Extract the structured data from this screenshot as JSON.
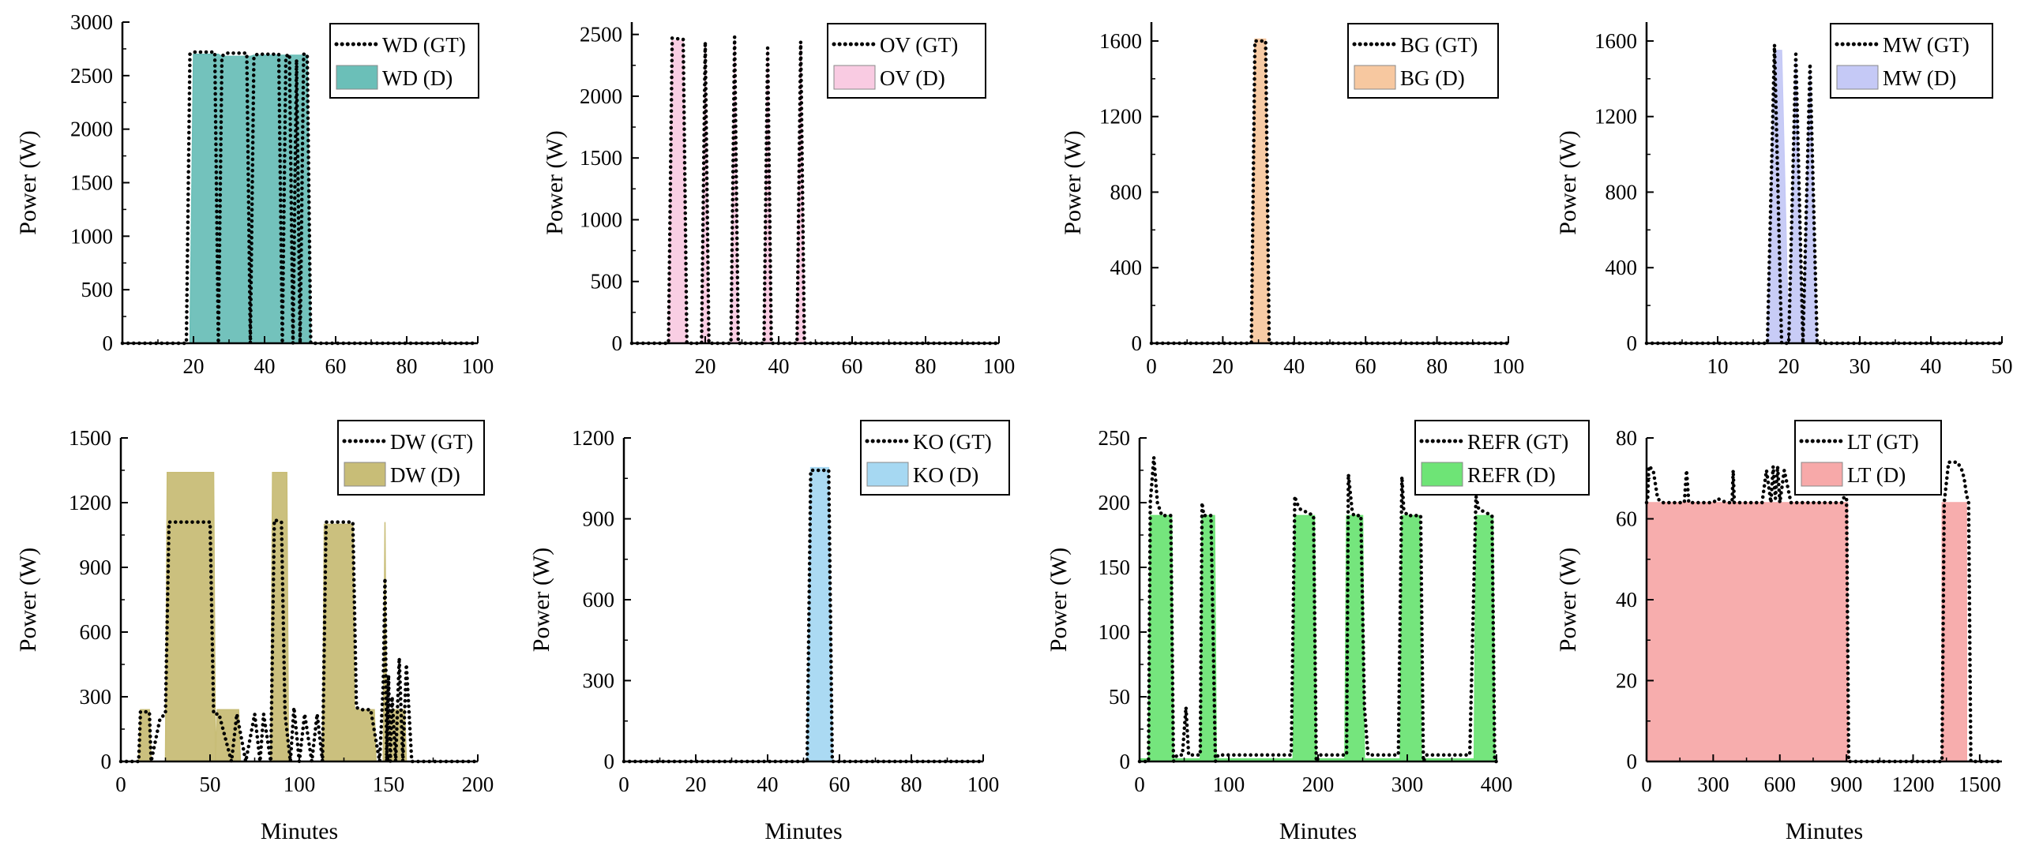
{
  "figure": {
    "background": "#ffffff"
  },
  "chart_data": [
    {
      "id": "wd",
      "type": "area",
      "ylabel": "Power (W)",
      "xlabel": "",
      "xlim": [
        0,
        100
      ],
      "ylim": [
        0,
        3000
      ],
      "xticks": [
        20,
        40,
        60,
        80,
        100
      ],
      "yticks": [
        0,
        500,
        1000,
        1500,
        2000,
        2500,
        3000
      ],
      "series": [
        {
          "name": "WD (GT)",
          "role": "gt",
          "color": "#000000",
          "x": [
            0,
            18,
            19,
            20,
            26,
            27,
            28,
            29,
            35,
            36,
            37,
            38,
            44,
            45,
            46,
            47,
            48,
            49,
            50,
            51,
            52,
            53,
            100
          ],
          "y": [
            0,
            0,
            2700,
            2720,
            2720,
            0,
            2680,
            2710,
            2710,
            0,
            2680,
            2700,
            2700,
            0,
            2680,
            2700,
            0,
            2650,
            0,
            2700,
            2700,
            0,
            0
          ]
        },
        {
          "name": "WD (D)",
          "role": "d",
          "color": "#6bbfb8",
          "x": [
            0,
            19,
            20,
            27,
            28,
            36,
            37,
            44,
            45,
            47,
            49,
            50,
            51,
            52,
            53,
            100
          ],
          "y": [
            0,
            0,
            2700,
            2700,
            2680,
            2680,
            2690,
            2690,
            2690,
            2690,
            2690,
            2690,
            2690,
            2690,
            0,
            0
          ]
        }
      ]
    },
    {
      "id": "ov",
      "type": "area",
      "ylabel": "Power (W)",
      "xlabel": "",
      "xlim": [
        0,
        100
      ],
      "ylim": [
        0,
        2600
      ],
      "xticks": [
        20,
        40,
        60,
        80,
        100
      ],
      "yticks": [
        0,
        500,
        1000,
        1500,
        2000,
        2500
      ],
      "series": [
        {
          "name": "OV (GT)",
          "role": "gt",
          "color": "#000000",
          "x": [
            0,
            10,
            11,
            14,
            15,
            19,
            20,
            21,
            27,
            28,
            29,
            36,
            37,
            38,
            45,
            46,
            47,
            100
          ],
          "y": [
            0,
            0,
            2470,
            2460,
            0,
            0,
            2440,
            0,
            0,
            2480,
            0,
            0,
            2390,
            0,
            0,
            2440,
            0,
            0
          ]
        },
        {
          "name": "OV (D)",
          "role": "d",
          "color": "#f9cbe2",
          "x": [
            0,
            10,
            11,
            14,
            15,
            19,
            20,
            21,
            27,
            28,
            29,
            36,
            37,
            38,
            45,
            46,
            47,
            100
          ],
          "y": [
            0,
            0,
            2450,
            2450,
            0,
            0,
            2420,
            0,
            0,
            2450,
            0,
            0,
            2370,
            0,
            0,
            2420,
            0,
            0
          ]
        }
      ]
    },
    {
      "id": "bg",
      "type": "area",
      "ylabel": "Power (W)",
      "xlabel": "",
      "xlim": [
        0,
        100
      ],
      "ylim": [
        0,
        1700
      ],
      "xticks": [
        0,
        20,
        40,
        60,
        80,
        100
      ],
      "yticks": [
        0,
        400,
        800,
        1200,
        1600
      ],
      "series": [
        {
          "name": "BG (GT)",
          "role": "gt",
          "color": "#000000",
          "x": [
            0,
            28,
            29,
            32,
            33,
            100
          ],
          "y": [
            0,
            0,
            1600,
            1600,
            0,
            0
          ]
        },
        {
          "name": "BG (D)",
          "role": "d",
          "color": "#f7c8a0",
          "x": [
            0,
            28,
            29,
            32,
            33,
            100
          ],
          "y": [
            0,
            0,
            1610,
            1610,
            0,
            0
          ]
        }
      ]
    },
    {
      "id": "mw",
      "type": "area",
      "ylabel": "Power (W)",
      "xlabel": "",
      "xlim": [
        0,
        50
      ],
      "ylim": [
        0,
        1700
      ],
      "xticks": [
        10,
        20,
        30,
        40,
        50
      ],
      "yticks": [
        0,
        400,
        800,
        1200,
        1600
      ],
      "series": [
        {
          "name": "MW (GT)",
          "role": "gt",
          "color": "#000000",
          "x": [
            0,
            17,
            18,
            19,
            20,
            21,
            22,
            23,
            24,
            50
          ],
          "y": [
            0,
            0,
            1580,
            0,
            0,
            1530,
            0,
            1480,
            0,
            0
          ]
        },
        {
          "name": "MW (D)",
          "role": "d",
          "color": "#c5c9f6",
          "x": [
            0,
            17,
            18,
            19,
            20,
            21,
            22,
            23,
            24,
            50
          ],
          "y": [
            0,
            0,
            1550,
            1550,
            0,
            1500,
            0,
            1450,
            0,
            0
          ]
        }
      ]
    },
    {
      "id": "dw",
      "type": "area",
      "ylabel": "Power (W)",
      "xlabel": "Minutes",
      "xlim": [
        0,
        200
      ],
      "ylim": [
        0,
        1500
      ],
      "xticks": [
        0,
        50,
        100,
        150,
        200
      ],
      "yticks": [
        0,
        300,
        600,
        900,
        1200,
        1500
      ],
      "series": [
        {
          "name": "DW (GT)",
          "role": "gt",
          "color": "#000000",
          "x": [
            0,
            10,
            11,
            16,
            17,
            22,
            25,
            27,
            50,
            52,
            55,
            62,
            65,
            70,
            75,
            78,
            80,
            84,
            86,
            90,
            92,
            95,
            97,
            100,
            103,
            107,
            110,
            113,
            115,
            117,
            120,
            130,
            132,
            135,
            140,
            145,
            147,
            148,
            149,
            150,
            151,
            152,
            154,
            156,
            158,
            160,
            163,
            165,
            200
          ],
          "y": [
            0,
            0,
            230,
            230,
            0,
            200,
            220,
            1110,
            1110,
            220,
            220,
            0,
            220,
            0,
            220,
            0,
            220,
            0,
            1120,
            1110,
            220,
            0,
            250,
            0,
            220,
            0,
            220,
            0,
            1110,
            1110,
            1110,
            1110,
            250,
            240,
            240,
            0,
            350,
            850,
            0,
            400,
            0,
            300,
            0,
            480,
            0,
            450,
            0,
            0,
            0
          ]
        },
        {
          "name": "DW (D)",
          "role": "d",
          "color": "#c8bd77",
          "x": [
            0,
            10,
            11,
            16,
            17,
            25,
            26,
            52,
            53,
            54,
            66,
            67,
            78,
            79,
            84,
            85,
            93,
            94,
            113,
            114,
            130,
            131,
            142,
            143,
            147,
            148,
            149,
            150,
            159,
            160,
            200
          ],
          "y": [
            0,
            0,
            240,
            240,
            0,
            0,
            1340,
            1340,
            0,
            240,
            240,
            0,
            0,
            0,
            0,
            1340,
            1340,
            0,
            0,
            1100,
            1100,
            240,
            240,
            0,
            0,
            1110,
            0,
            240,
            240,
            0,
            0
          ]
        }
      ]
    },
    {
      "id": "ko",
      "type": "area",
      "ylabel": "Power (W)",
      "xlabel": "Minutes",
      "xlim": [
        0,
        100
      ],
      "ylim": [
        0,
        1200
      ],
      "xticks": [
        0,
        20,
        40,
        60,
        80,
        100
      ],
      "yticks": [
        0,
        300,
        600,
        900,
        1200
      ],
      "series": [
        {
          "name": "KO (GT)",
          "role": "gt",
          "color": "#000000",
          "x": [
            0,
            51,
            52,
            57,
            58,
            100
          ],
          "y": [
            0,
            0,
            1080,
            1080,
            0,
            0
          ]
        },
        {
          "name": "KO (D)",
          "role": "d",
          "color": "#a6d8f2",
          "x": [
            0,
            51,
            52,
            57,
            58,
            100
          ],
          "y": [
            0,
            0,
            1090,
            1090,
            0,
            0
          ]
        }
      ]
    },
    {
      "id": "refr",
      "type": "area",
      "ylabel": "Power (W)",
      "xlabel": "Minutes",
      "xlim": [
        0,
        400
      ],
      "ylim": [
        0,
        250
      ],
      "xticks": [
        0,
        100,
        200,
        300,
        400
      ],
      "yticks": [
        0,
        50,
        100,
        150,
        200,
        250
      ],
      "series": [
        {
          "name": "REFR (GT)",
          "role": "gt",
          "color": "#000000",
          "x": [
            0,
            10,
            12,
            16,
            20,
            25,
            30,
            35,
            38,
            42,
            48,
            52,
            55,
            58,
            68,
            70,
            72,
            80,
            85,
            88,
            120,
            170,
            174,
            176,
            180,
            195,
            198,
            202,
            230,
            232,
            234,
            238,
            240,
            248,
            252,
            256,
            260,
            290,
            294,
            296,
            300,
            315,
            318,
            322,
            370,
            377,
            380,
            395,
            398,
            400
          ],
          "y": [
            0,
            0,
            200,
            235,
            200,
            190,
            190,
            190,
            0,
            5,
            5,
            42,
            5,
            5,
            5,
            200,
            190,
            190,
            0,
            5,
            5,
            5,
            205,
            200,
            195,
            190,
            0,
            5,
            5,
            5,
            222,
            195,
            190,
            190,
            42,
            5,
            5,
            5,
            220,
            195,
            190,
            190,
            0,
            5,
            5,
            205,
            195,
            190,
            0,
            0
          ]
        },
        {
          "name": "REFR (D)",
          "role": "d",
          "color": "#6ee476",
          "x": [
            0,
            10,
            12,
            36,
            38,
            68,
            70,
            84,
            86,
            172,
            174,
            196,
            198,
            230,
            232,
            250,
            252,
            292,
            294,
            314,
            316,
            375,
            377,
            396,
            398,
            400
          ],
          "y": [
            2,
            2,
            190,
            190,
            2,
            2,
            190,
            190,
            2,
            2,
            190,
            190,
            2,
            2,
            190,
            190,
            2,
            2,
            190,
            190,
            2,
            2,
            190,
            190,
            2,
            2
          ]
        }
      ]
    },
    {
      "id": "lt",
      "type": "area",
      "ylabel": "Power (W)",
      "xlabel": "Minutes",
      "xlim": [
        0,
        1600
      ],
      "ylim": [
        0,
        80
      ],
      "xticks": [
        0,
        300,
        600,
        900,
        1200,
        1500
      ],
      "yticks": [
        0,
        20,
        40,
        60,
        80
      ],
      "series": [
        {
          "name": "LT (GT)",
          "role": "gt",
          "color": "#000000",
          "x": [
            0,
            5,
            10,
            30,
            50,
            70,
            100,
            170,
            180,
            190,
            230,
            300,
            320,
            360,
            385,
            390,
            395,
            420,
            480,
            520,
            540,
            560,
            570,
            580,
            590,
            600,
            620,
            650,
            700,
            800,
            880,
            900,
            910,
            920,
            1000,
            1100,
            1200,
            1300,
            1330,
            1340,
            1360,
            1380,
            1400,
            1420,
            1430,
            1440,
            1450,
            1460,
            1600
          ],
          "y": [
            64,
            65,
            73,
            72,
            65,
            64,
            64,
            64,
            72,
            64,
            64,
            64,
            65,
            64,
            64,
            72,
            64,
            64,
            64,
            64,
            72,
            64,
            73,
            65,
            73,
            64,
            72,
            64,
            64,
            64,
            64,
            67,
            0,
            0,
            0,
            0,
            0,
            0,
            0,
            64,
            74,
            74,
            74,
            72,
            70,
            66,
            64,
            0,
            0
          ]
        },
        {
          "name": "LT (D)",
          "role": "d",
          "color": "#f7a9a9",
          "x": [
            0,
            905,
            906,
            1330,
            1331,
            1440,
            1441,
            1600
          ],
          "y": [
            64,
            64,
            0,
            0,
            64,
            64,
            0,
            0
          ]
        }
      ]
    }
  ]
}
